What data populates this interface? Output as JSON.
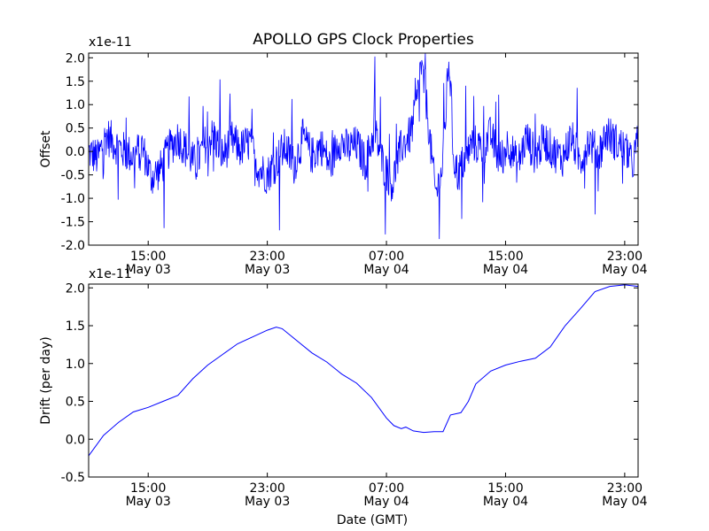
{
  "title": "APOLLO GPS Clock Properties",
  "colors": {
    "series": "#0000ff",
    "axis": "#000000",
    "background": "#ffffff"
  },
  "chart_data": [
    {
      "type": "line",
      "title": "APOLLO GPS Clock Properties",
      "xlabel": "",
      "ylabel": "Offset",
      "multiplier": "x1e-11",
      "xlim": [
        11.0,
        47.9
      ],
      "ylim": [
        -2.0,
        2.1
      ],
      "grid": false,
      "x_unit": "hours since May 03 00:00 GMT",
      "yticks": [
        {
          "value": -2.0,
          "label": "-2.0"
        },
        {
          "value": -1.5,
          "label": "-1.5"
        },
        {
          "value": -1.0,
          "label": "-1.0"
        },
        {
          "value": -0.5,
          "label": "-0.5"
        },
        {
          "value": 0.0,
          "label": "0.0"
        },
        {
          "value": 0.5,
          "label": "0.5"
        },
        {
          "value": 1.0,
          "label": "1.0"
        },
        {
          "value": 1.5,
          "label": "1.5"
        },
        {
          "value": 2.0,
          "label": "2.0"
        }
      ],
      "xticks": [
        {
          "value": 15,
          "time": "15:00",
          "date": "May 03"
        },
        {
          "value": 23,
          "time": "23:00",
          "date": "May 03"
        },
        {
          "value": 31,
          "time": "07:00",
          "date": "May 04"
        },
        {
          "value": 39,
          "time": "15:00",
          "date": "May 04"
        },
        {
          "value": 47,
          "time": "23:00",
          "date": "May 04"
        }
      ],
      "series": [
        {
          "style": "noisy",
          "points": [
            [
              11.0,
              0.0
            ],
            [
              11.6,
              -0.15
            ],
            [
              12.2,
              0.35
            ],
            [
              12.8,
              0.15
            ],
            [
              13.4,
              0.0
            ],
            [
              14.0,
              -0.1
            ],
            [
              14.6,
              0.1
            ],
            [
              15.2,
              -0.55
            ],
            [
              15.8,
              -0.4
            ],
            [
              16.4,
              0.05
            ],
            [
              17.0,
              0.3
            ],
            [
              17.6,
              0.0
            ],
            [
              18.2,
              -0.3
            ],
            [
              18.8,
              0.15
            ],
            [
              19.4,
              0.35
            ],
            [
              20.0,
              -0.1
            ],
            [
              20.6,
              0.25
            ],
            [
              21.2,
              0.05
            ],
            [
              21.8,
              0.2
            ],
            [
              22.4,
              -0.35
            ],
            [
              23.0,
              -0.5
            ],
            [
              23.6,
              -0.2
            ],
            [
              24.2,
              0.1
            ],
            [
              24.8,
              -0.3
            ],
            [
              25.4,
              0.3
            ],
            [
              26.0,
              -0.1
            ],
            [
              26.6,
              0.15
            ],
            [
              27.2,
              -0.3
            ],
            [
              27.8,
              0.25
            ],
            [
              28.4,
              0.05
            ],
            [
              29.0,
              0.15
            ],
            [
              29.6,
              -0.25
            ],
            [
              30.2,
              0.45
            ],
            [
              30.8,
              -0.3
            ],
            [
              31.4,
              -0.7
            ],
            [
              32.0,
              0.1
            ],
            [
              32.6,
              0.35
            ],
            [
              33.0,
              0.9
            ],
            [
              33.3,
              1.85
            ],
            [
              33.6,
              1.3
            ],
            [
              34.0,
              0.0
            ],
            [
              34.3,
              -0.9
            ],
            [
              34.7,
              -0.5
            ],
            [
              35.0,
              0.9
            ],
            [
              35.2,
              2.05
            ],
            [
              35.5,
              -0.1
            ],
            [
              35.8,
              -0.5
            ],
            [
              36.2,
              -0.2
            ],
            [
              36.8,
              0.2
            ],
            [
              37.4,
              0.05
            ],
            [
              38.0,
              0.35
            ],
            [
              38.6,
              -0.2
            ],
            [
              39.2,
              0.2
            ],
            [
              39.8,
              -0.3
            ],
            [
              40.4,
              0.3
            ],
            [
              41.0,
              -0.1
            ],
            [
              41.6,
              0.25
            ],
            [
              42.2,
              0.0
            ],
            [
              42.8,
              -0.15
            ],
            [
              43.4,
              0.3
            ],
            [
              44.0,
              -0.2
            ],
            [
              44.6,
              0.25
            ],
            [
              45.2,
              -0.1
            ],
            [
              45.8,
              0.4
            ],
            [
              46.4,
              0.2
            ],
            [
              47.0,
              0.05
            ],
            [
              47.5,
              -0.3
            ],
            [
              47.9,
              0.25
            ]
          ]
        }
      ]
    },
    {
      "type": "line",
      "title": "",
      "xlabel": "Date (GMT)",
      "ylabel": "Drift (per day)",
      "multiplier": "x1e-11",
      "xlim": [
        11.0,
        47.9
      ],
      "ylim": [
        -0.5,
        2.05
      ],
      "grid": false,
      "x_unit": "hours since May 03 00:00 GMT",
      "yticks": [
        {
          "value": -0.5,
          "label": "-0.5"
        },
        {
          "value": 0.0,
          "label": "0.0"
        },
        {
          "value": 0.5,
          "label": "0.5"
        },
        {
          "value": 1.0,
          "label": "1.0"
        },
        {
          "value": 1.5,
          "label": "1.5"
        },
        {
          "value": 2.0,
          "label": "2.0"
        }
      ],
      "xticks": [
        {
          "value": 15,
          "time": "15:00",
          "date": "May 03"
        },
        {
          "value": 23,
          "time": "23:00",
          "date": "May 03"
        },
        {
          "value": 31,
          "time": "07:00",
          "date": "May 04"
        },
        {
          "value": 39,
          "time": "15:00",
          "date": "May 04"
        },
        {
          "value": 47,
          "time": "23:00",
          "date": "May 04"
        }
      ],
      "series": [
        {
          "style": "smooth",
          "points": [
            [
              11.0,
              -0.22
            ],
            [
              12.0,
              0.05
            ],
            [
              13.0,
              0.22
            ],
            [
              14.0,
              0.36
            ],
            [
              15.0,
              0.42
            ],
            [
              16.0,
              0.5
            ],
            [
              17.0,
              0.58
            ],
            [
              18.0,
              0.8
            ],
            [
              19.0,
              0.98
            ],
            [
              20.0,
              1.12
            ],
            [
              21.0,
              1.26
            ],
            [
              22.0,
              1.35
            ],
            [
              23.0,
              1.44
            ],
            [
              23.6,
              1.48
            ],
            [
              24.0,
              1.46
            ],
            [
              25.0,
              1.3
            ],
            [
              26.0,
              1.14
            ],
            [
              27.0,
              1.02
            ],
            [
              28.0,
              0.86
            ],
            [
              29.0,
              0.74
            ],
            [
              30.0,
              0.55
            ],
            [
              31.0,
              0.28
            ],
            [
              31.5,
              0.18
            ],
            [
              32.0,
              0.14
            ],
            [
              32.3,
              0.16
            ],
            [
              32.8,
              0.11
            ],
            [
              33.5,
              0.09
            ],
            [
              34.2,
              0.1
            ],
            [
              34.8,
              0.1
            ],
            [
              35.3,
              0.32
            ],
            [
              36.0,
              0.35
            ],
            [
              36.5,
              0.5
            ],
            [
              37.0,
              0.73
            ],
            [
              38.0,
              0.9
            ],
            [
              39.0,
              0.98
            ],
            [
              40.0,
              1.03
            ],
            [
              41.0,
              1.07
            ],
            [
              42.0,
              1.22
            ],
            [
              43.0,
              1.5
            ],
            [
              44.0,
              1.72
            ],
            [
              45.0,
              1.95
            ],
            [
              46.0,
              2.02
            ],
            [
              47.0,
              2.04
            ],
            [
              47.9,
              2.02
            ]
          ]
        }
      ]
    }
  ]
}
